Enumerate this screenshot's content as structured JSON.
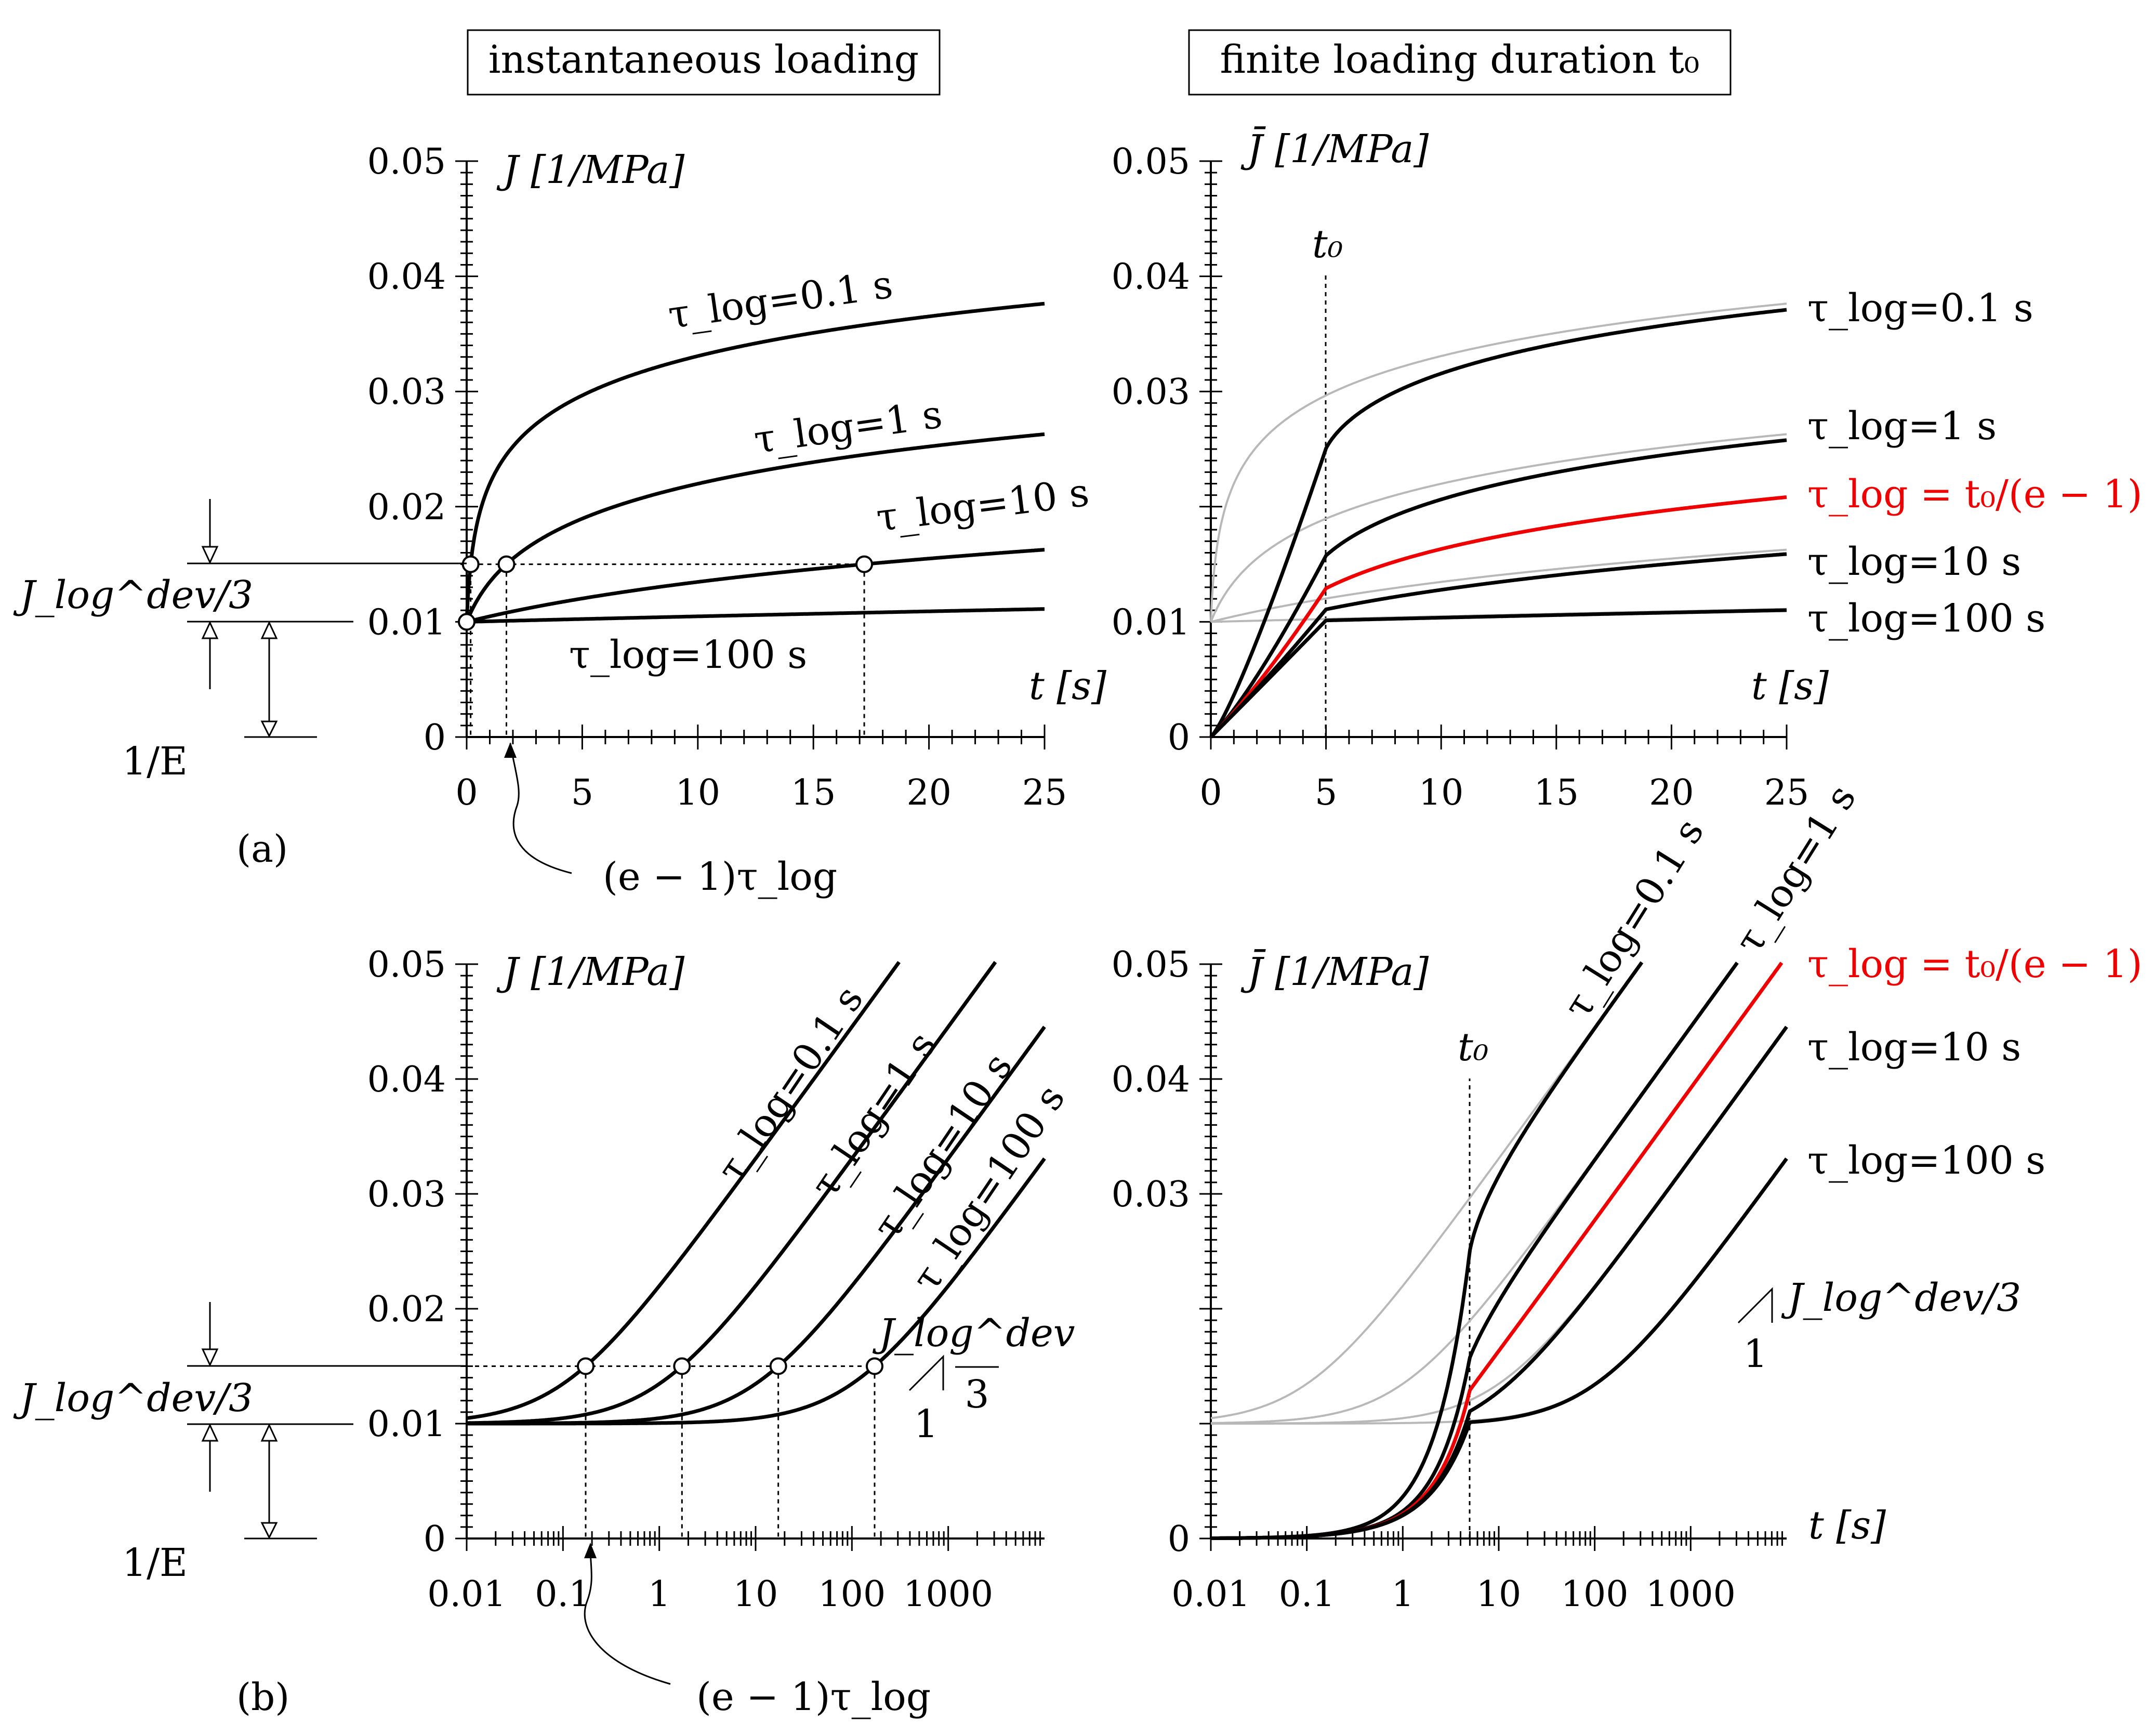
{
  "headers": {
    "left": "instantaneous loading",
    "right": "finite loading duration t₀"
  },
  "panel_labels": {
    "a": "(a)",
    "b": "(b)"
  },
  "annotations": {
    "jdev": "J_log^dev/3",
    "one_over_E": "1/E",
    "e_minus_1_tau": "(e − 1)τ_log",
    "t0": "t₀",
    "slope_numerator": "J_log^dev",
    "slope_denominator": "3",
    "slope_run": "1"
  },
  "chart_data": [
    {
      "id": "a-left",
      "type": "line",
      "title": "instantaneous loading",
      "xlabel": "t [s]",
      "ylabel": "J [1/MPa]",
      "xscale": "linear",
      "xlim": [
        0,
        25
      ],
      "ylim": [
        0,
        0.05
      ],
      "xticks": [
        "0",
        "5",
        "10",
        "15",
        "20",
        "25"
      ],
      "yticks": [
        "0",
        "0.01",
        "0.02",
        "0.03",
        "0.04",
        "0.05"
      ],
      "model": "J(t) = 1/E + (J_dev/3)·ln(1 + t/τ), 1/E = 0.01, J_dev/3 = 0.005",
      "series": [
        {
          "name": "τ_log=0.1 s",
          "tau": 0.1,
          "color": "#000000"
        },
        {
          "name": "τ_log=1 s",
          "tau": 1,
          "color": "#000000"
        },
        {
          "name": "τ_log=10 s",
          "tau": 10,
          "color": "#000000"
        },
        {
          "name": "τ_log=100 s",
          "tau": 100,
          "color": "#000000"
        }
      ],
      "marked_points": [
        {
          "x": 0,
          "y": 0.01
        },
        {
          "x": 0.172,
          "y": 0.015
        },
        {
          "x": 1.72,
          "y": 0.015
        },
        {
          "x": 17.2,
          "y": 0.015
        }
      ]
    },
    {
      "id": "a-right",
      "type": "line",
      "title": "finite loading duration t0",
      "xlabel": "t [s]",
      "ylabel": "J̄ [1/MPa]",
      "xscale": "linear",
      "xlim": [
        0,
        25
      ],
      "ylim": [
        0,
        0.05
      ],
      "t0": 5,
      "xticks": [
        "0",
        "5",
        "10",
        "15",
        "20",
        "25"
      ],
      "yticks": [
        "0",
        "0.01",
        "0.03",
        "0.04",
        "0.05"
      ],
      "series": [
        {
          "name": "τ_log=0.1 s",
          "tau": 0.1,
          "color": "#000000"
        },
        {
          "name": "τ_log=1 s",
          "tau": 1,
          "color": "#000000"
        },
        {
          "name": "τ_log = t₀/(e − 1)",
          "tau": 2.91,
          "color": "#ee0000"
        },
        {
          "name": "τ_log=10 s",
          "tau": 10,
          "color": "#000000"
        },
        {
          "name": "τ_log=100 s",
          "tau": 100,
          "color": "#000000"
        }
      ],
      "reference_series": "instantaneous curves (gray) for τ_log = 0.1, 1, 10, 100 s"
    },
    {
      "id": "b-left",
      "type": "line",
      "xlabel": "t [s]",
      "ylabel": "J [1/MPa]",
      "xscale": "log",
      "xlim": [
        0.01,
        10000
      ],
      "ylim": [
        0,
        0.05
      ],
      "xticks": [
        "0.01",
        "0.1",
        "1",
        "10",
        "100",
        "1000"
      ],
      "yticks": [
        "0",
        "0.01",
        "0.02",
        "0.03",
        "0.04",
        "0.05"
      ],
      "series": [
        {
          "name": "τ_log=0.1 s",
          "tau": 0.1,
          "color": "#000000"
        },
        {
          "name": "τ_log=1 s",
          "tau": 1,
          "color": "#000000"
        },
        {
          "name": "τ_log=10 s",
          "tau": 10,
          "color": "#000000"
        },
        {
          "name": "τ_log=100 s",
          "tau": 100,
          "color": "#000000"
        }
      ],
      "marked_points": [
        {
          "x": 0.172,
          "y": 0.015
        },
        {
          "x": 1.72,
          "y": 0.015
        },
        {
          "x": 17.2,
          "y": 0.015
        },
        {
          "x": 172,
          "y": 0.015
        }
      ]
    },
    {
      "id": "b-right",
      "type": "line",
      "xlabel": "t [s]",
      "ylabel": "J̄ [1/MPa]",
      "xscale": "log",
      "xlim": [
        0.01,
        10000
      ],
      "ylim": [
        0,
        0.05
      ],
      "t0": 5,
      "xticks": [
        "0.01",
        "0.1",
        "1",
        "10",
        "100",
        "1000"
      ],
      "yticks": [
        "0",
        "0.03",
        "0.04",
        "0.05"
      ],
      "series": [
        {
          "name": "τ_log=0.1 s",
          "tau": 0.1,
          "color": "#000000"
        },
        {
          "name": "τ_log=1 s",
          "tau": 1,
          "color": "#000000"
        },
        {
          "name": "τ_log = t₀/(e − 1)",
          "tau": 2.91,
          "color": "#ee0000"
        },
        {
          "name": "τ_log=10 s",
          "tau": 10,
          "color": "#000000"
        },
        {
          "name": "τ_log=100 s",
          "tau": 100,
          "color": "#000000"
        }
      ],
      "reference_series": "instantaneous curves (gray) for τ_log = 0.1, 1, 10, 100 s"
    }
  ]
}
